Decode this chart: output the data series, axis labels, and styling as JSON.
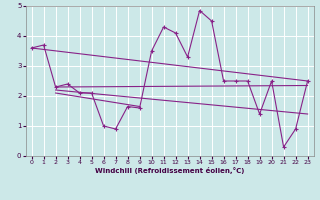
{
  "xlabel": "Windchill (Refroidissement éolien,°C)",
  "bg_color": "#cce8e8",
  "grid_color": "#ffffff",
  "line_color": "#882288",
  "xlim": [
    -0.5,
    23.5
  ],
  "ylim": [
    0,
    5
  ],
  "yticks": [
    0,
    1,
    2,
    3,
    4,
    5
  ],
  "xticks": [
    0,
    1,
    2,
    3,
    4,
    5,
    6,
    7,
    8,
    9,
    10,
    11,
    12,
    13,
    14,
    15,
    16,
    17,
    18,
    19,
    20,
    21,
    22,
    23
  ],
  "main_x": [
    0,
    1,
    2,
    3,
    4,
    5,
    6,
    7,
    8,
    9,
    10,
    11,
    12,
    13,
    14,
    15,
    16,
    17,
    18,
    19,
    20,
    21,
    22,
    23
  ],
  "main_y": [
    3.6,
    3.7,
    2.3,
    2.4,
    2.1,
    2.1,
    1.0,
    0.9,
    1.65,
    1.6,
    3.5,
    4.3,
    4.1,
    3.3,
    4.85,
    4.5,
    2.5,
    2.5,
    2.5,
    1.4,
    2.5,
    0.3,
    0.9,
    2.5
  ],
  "trend1_x": [
    0,
    23
  ],
  "trend1_y": [
    3.6,
    2.5
  ],
  "trend2_x": [
    2,
    23
  ],
  "trend2_y": [
    2.3,
    2.35
  ],
  "trend3_x": [
    2,
    23
  ],
  "trend3_y": [
    2.2,
    1.4
  ],
  "trend4_x": [
    2,
    9
  ],
  "trend4_y": [
    2.1,
    1.65
  ]
}
